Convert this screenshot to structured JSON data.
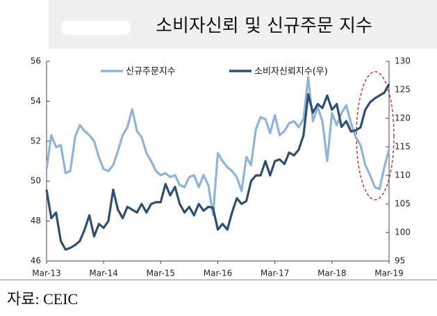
{
  "chart_data": {
    "type": "line",
    "title": "소비자신뢰 및 신규주문 지수",
    "source": "자료: CEIC",
    "categories": [
      "Mar-13",
      null,
      null,
      null,
      null,
      null,
      null,
      null,
      null,
      null,
      null,
      null,
      "Mar-14",
      null,
      null,
      null,
      null,
      null,
      null,
      null,
      null,
      null,
      null,
      null,
      "Mar-15",
      null,
      null,
      null,
      null,
      null,
      null,
      null,
      null,
      null,
      null,
      null,
      "Mar-16",
      null,
      null,
      null,
      null,
      null,
      null,
      null,
      null,
      null,
      null,
      null,
      "Mar-17",
      null,
      null,
      null,
      null,
      null,
      null,
      null,
      null,
      null,
      null,
      null,
      "Mar-18",
      null,
      null,
      null,
      null,
      null,
      null,
      null,
      null,
      null,
      null,
      null,
      "Mar-19"
    ],
    "series": [
      {
        "name": "신규주문지수",
        "color": "#8fb4dc",
        "values": [
          50.6,
          52.3,
          51.7,
          51.8,
          50.4,
          50.5,
          52.2,
          52.8,
          52.5,
          52.3,
          52.0,
          51.2,
          50.6,
          50.5,
          50.8,
          51.5,
          52.3,
          52.7,
          53.6,
          52.5,
          52.2,
          51.4,
          51.0,
          50.5,
          50.3,
          50.4,
          50.2,
          50.3,
          49.8,
          49.7,
          50.2,
          50.3,
          49.7,
          50.3,
          49.8,
          48.3,
          51.4,
          51.0,
          50.7,
          50.5,
          50.2,
          49.5,
          51.2,
          50.8,
          52.6,
          53.2,
          53.1,
          52.4,
          53.3,
          52.3,
          52.5,
          52.9,
          53.0,
          52.7,
          53.1,
          55.2,
          53.0,
          53.7,
          53.0,
          51.0,
          53.4,
          52.8,
          53.4,
          53.8,
          52.9,
          52.2,
          51.8,
          50.8,
          50.3,
          49.7,
          49.6,
          50.7,
          51.6
        ]
      },
      {
        "name": "소비자신뢰지수(우)",
        "color": "#2e4e72",
        "axis": "y2",
        "values": [
          107.5,
          102.5,
          103.5,
          98.5,
          97.0,
          97.3,
          97.8,
          98.5,
          100.5,
          103.0,
          99.3,
          101.5,
          100.8,
          102.0,
          107.5,
          104.0,
          102.5,
          104.5,
          104.0,
          103.5,
          105.0,
          103.5,
          105.0,
          105.3,
          105.3,
          108.5,
          106.5,
          108.0,
          105.0,
          103.5,
          104.5,
          103.0,
          105.0,
          103.8,
          104.5,
          104.3,
          100.5,
          101.5,
          100.5,
          103.5,
          106.0,
          105.0,
          105.5,
          109.0,
          110.0,
          110.0,
          112.5,
          110.0,
          112.5,
          112.8,
          112.0,
          114.0,
          113.5,
          114.5,
          117.0,
          124.2,
          121.0,
          122.5,
          121.8,
          124.0,
          121.5,
          122.5,
          118.5,
          119.5,
          117.7,
          117.9,
          118.4,
          121.5,
          122.8,
          123.5,
          124.0,
          124.5,
          126.0
        ]
      }
    ],
    "ylim": [
      46,
      56
    ],
    "yticks": [
      46,
      48,
      50,
      52,
      54,
      56
    ],
    "y2lim": [
      95,
      130
    ],
    "y2ticks": [
      95,
      100,
      105,
      110,
      115,
      120,
      125,
      130
    ],
    "legend": "top",
    "grid": false
  }
}
